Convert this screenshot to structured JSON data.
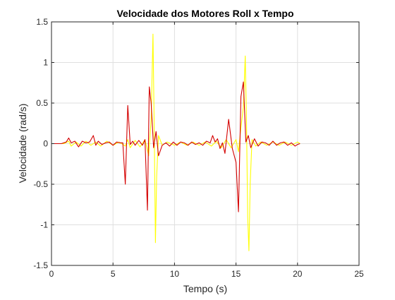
{
  "chart_data": {
    "type": "line",
    "title": "Velocidade dos Motores Roll x Tempo",
    "xlabel": "Tempo (s)",
    "ylabel": "Velocidade (rad/s)",
    "xlim": [
      0,
      25
    ],
    "ylim": [
      -1.5,
      1.5
    ],
    "xticks": [
      0,
      5,
      10,
      15,
      20,
      25
    ],
    "yticks": [
      -1.5,
      -1,
      -0.5,
      0,
      0.5,
      1,
      1.5
    ],
    "xtick_labels": [
      "0",
      "5",
      "10",
      "15",
      "20",
      "25"
    ],
    "ytick_labels": [
      "-1.5",
      "-1",
      "-0.5",
      "0",
      "0.5",
      "1",
      "1.5"
    ],
    "grid": true,
    "series": [
      {
        "color": "#FFFF00",
        "x": [
          0,
          1,
          1.4,
          1.6,
          2,
          2.4,
          2.8,
          3.2,
          3.6,
          4,
          4.5,
          5,
          5.5,
          6,
          6.2,
          6.4,
          6.8,
          7.2,
          7.6,
          7.9,
          8.1,
          8.25,
          8.35,
          8.45,
          8.55,
          8.7,
          9,
          9.4,
          10,
          10.5,
          11,
          11.5,
          12,
          12.5,
          13,
          13.4,
          13.8,
          14.2,
          14.6,
          15,
          15.2,
          15.4,
          15.6,
          15.75,
          15.85,
          15.95,
          16.05,
          16.15,
          16.3,
          16.6,
          17,
          17.5,
          18,
          18.5,
          19,
          19.5,
          20,
          20.2
        ],
        "values": [
          0,
          0,
          0.03,
          -0.03,
          0.02,
          -0.03,
          0.03,
          -0.02,
          0.02,
          -0.03,
          0.03,
          -0.02,
          0.02,
          -0.03,
          0.05,
          -0.05,
          0.04,
          -0.04,
          0.05,
          -0.15,
          0.3,
          1.35,
          0.2,
          -1.22,
          -0.4,
          0.1,
          -0.02,
          0.02,
          -0.02,
          0.02,
          -0.02,
          0.02,
          -0.02,
          0.02,
          -0.03,
          0.03,
          -0.05,
          0.05,
          -0.05,
          0.05,
          -0.1,
          0.2,
          0.45,
          1.08,
          0.3,
          -0.9,
          -1.32,
          -0.5,
          0.05,
          -0.03,
          0.02,
          -0.02,
          0.02,
          -0.02,
          0.02,
          -0.02,
          0.02,
          0
        ]
      },
      {
        "color": "#D40000",
        "x": [
          0,
          0.8,
          1.2,
          1.4,
          1.6,
          1.9,
          2.2,
          2.5,
          2.8,
          3.1,
          3.4,
          3.6,
          3.8,
          4.1,
          4.4,
          4.7,
          5,
          5.3,
          5.6,
          5.8,
          6,
          6.2,
          6.4,
          6.6,
          6.8,
          7.1,
          7.4,
          7.6,
          7.8,
          7.95,
          8.1,
          8.3,
          8.5,
          8.7,
          9,
          9.3,
          9.6,
          9.9,
          10.2,
          10.5,
          10.8,
          11.1,
          11.4,
          11.7,
          12,
          12.3,
          12.6,
          12.9,
          13.1,
          13.3,
          13.5,
          13.7,
          13.9,
          14.1,
          14.4,
          14.7,
          15,
          15.2,
          15.4,
          15.6,
          15.8,
          16,
          16.2,
          16.5,
          16.8,
          17.1,
          17.4,
          17.7,
          18,
          18.3,
          18.6,
          18.9,
          19.2,
          19.5,
          19.8,
          20,
          20.2
        ],
        "values": [
          0,
          0,
          0.02,
          0.07,
          0.01,
          0.03,
          -0.04,
          0.03,
          0.01,
          0.02,
          0.1,
          -0.02,
          0.03,
          -0.01,
          0.01,
          0.02,
          -0.02,
          0.02,
          0.01,
          0.01,
          -0.5,
          0.47,
          -0.01,
          0.03,
          -0.02,
          0.04,
          -0.02,
          0.05,
          -0.82,
          0.7,
          0.5,
          -0.05,
          0.15,
          -0.15,
          -0.02,
          0.01,
          -0.03,
          0.02,
          -0.02,
          0.02,
          0.01,
          -0.02,
          0.02,
          -0.01,
          0.01,
          -0.02,
          0.03,
          0.01,
          0.1,
          0.02,
          0.06,
          -0.06,
          0.01,
          -0.12,
          0.3,
          -0.06,
          -0.23,
          -0.84,
          0.58,
          0.76,
          0.02,
          0.1,
          -0.05,
          0.06,
          -0.03,
          0.02,
          0.01,
          -0.02,
          0.03,
          -0.02,
          0.01,
          0.02,
          -0.02,
          0.01,
          -0.03,
          -0.01,
          0
        ]
      }
    ]
  }
}
